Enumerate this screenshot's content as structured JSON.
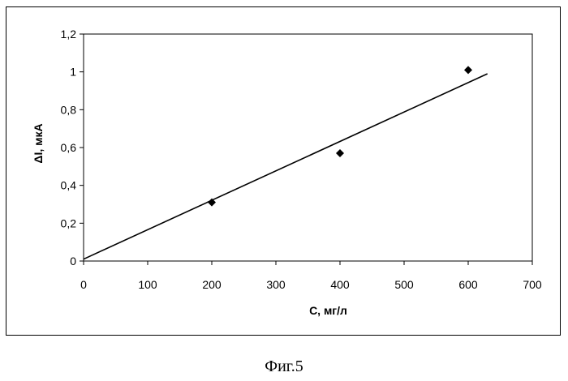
{
  "chart_data": {
    "type": "scatter",
    "xlabel": "C, мг/л",
    "ylabel": "ΔI, мкА",
    "xlim": [
      0,
      700
    ],
    "ylim": [
      0,
      1.2
    ],
    "x_ticks": [
      "0",
      "100",
      "200",
      "300",
      "400",
      "500",
      "600",
      "700"
    ],
    "y_ticks": [
      "0",
      "0,2",
      "0,4",
      "0,6",
      "0,8",
      "1",
      "1,2"
    ],
    "series": [
      {
        "marker": "diamond",
        "color": "#000000",
        "points": [
          {
            "x": 200,
            "y": 0.31
          },
          {
            "x": 400,
            "y": 0.57
          },
          {
            "x": 600,
            "y": 1.01
          }
        ]
      }
    ],
    "trendline": {
      "type": "linear",
      "color": "#000000",
      "from": {
        "x": 0,
        "y": 0.01
      },
      "to": {
        "x": 630,
        "y": 0.99
      }
    },
    "grid": false,
    "legend": "none"
  },
  "caption": "Фиг.5"
}
